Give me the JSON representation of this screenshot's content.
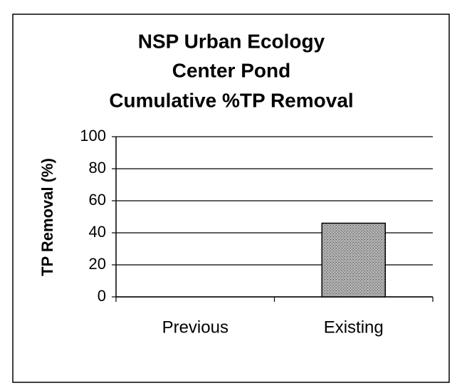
{
  "chart_data": {
    "type": "bar",
    "title": [
      "NSP Urban Ecology",
      "Center Pond",
      "Cumulative %TP Removal"
    ],
    "y_label": "TP Removal (%)",
    "categories": [
      "Previous",
      "Existing"
    ],
    "values": [
      0,
      46
    ],
    "color": "#a9a9a9",
    "ylim": [
      0,
      100
    ],
    "yticks": [
      0,
      20,
      40,
      60,
      80,
      100
    ],
    "grid": true
  }
}
